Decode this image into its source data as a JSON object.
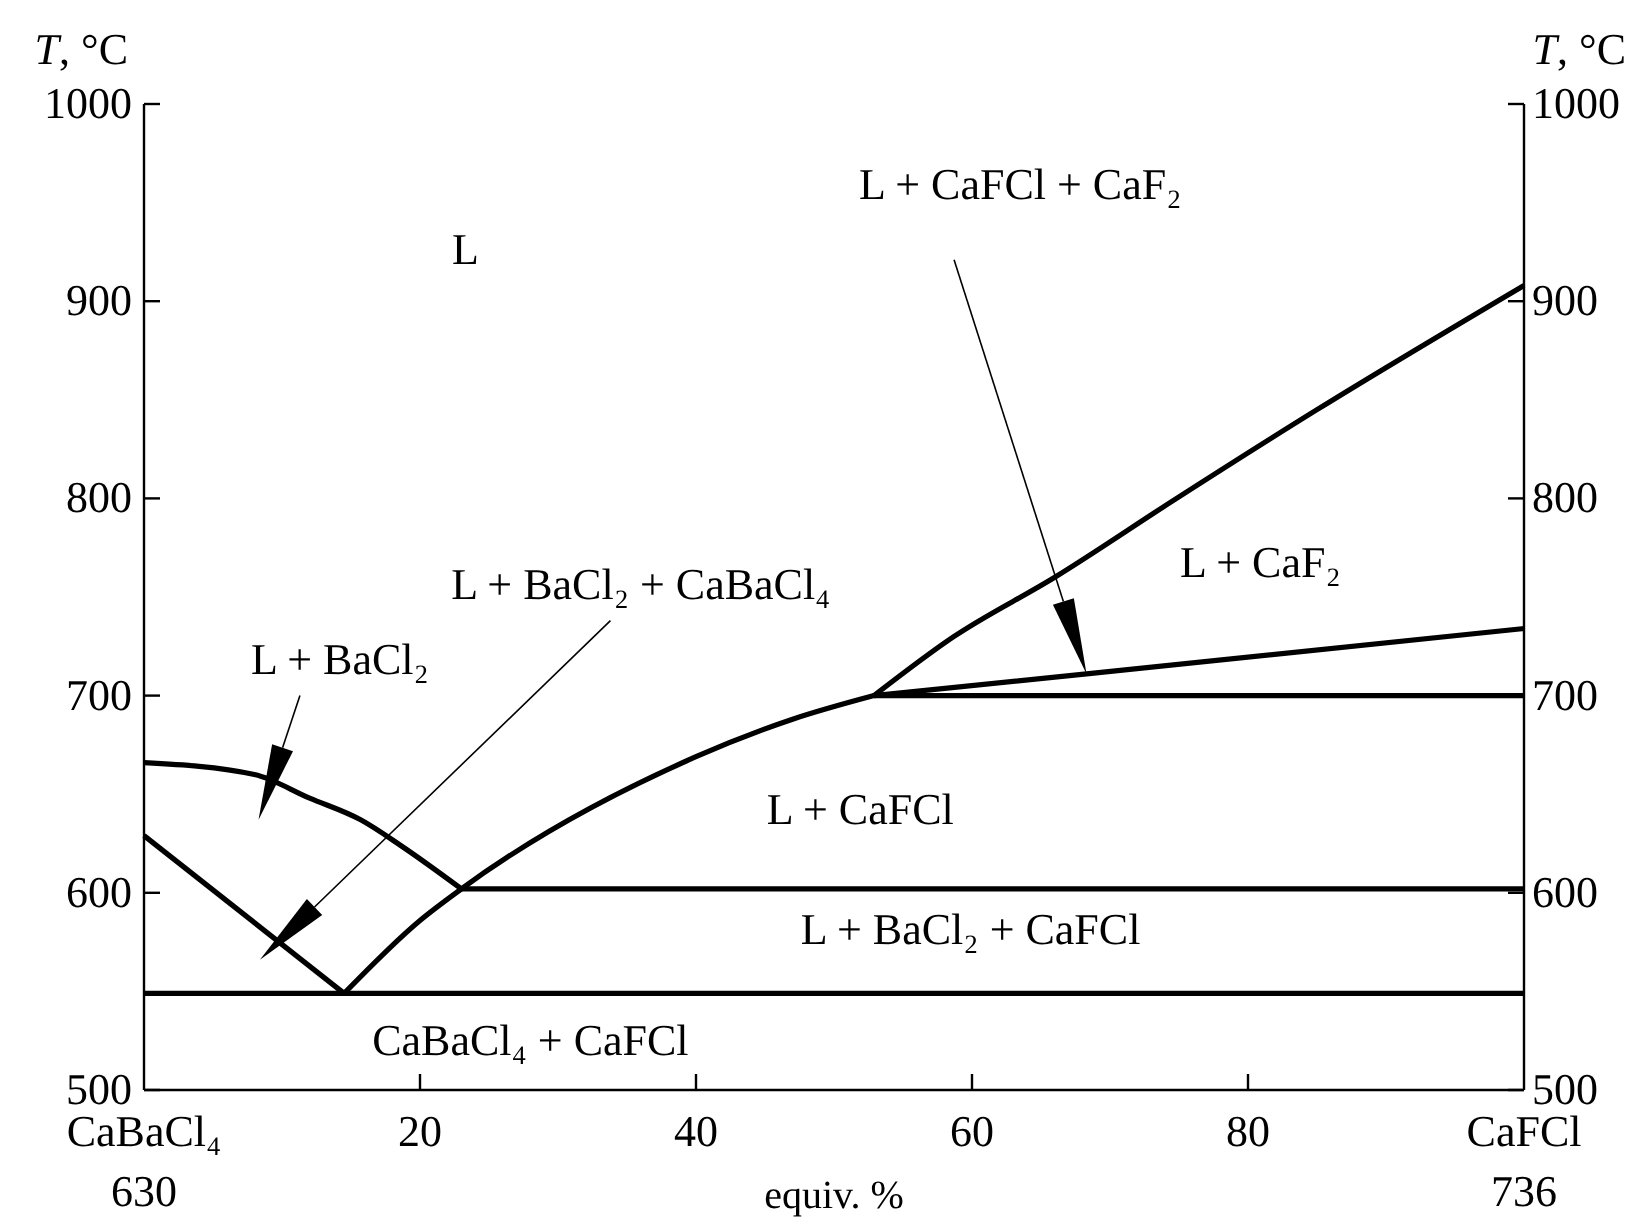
{
  "chart_data": {
    "type": "line",
    "xlabel": "equiv. %",
    "ylabel": "T, °C",
    "y2label": "T, °C",
    "xlim": [
      0,
      100
    ],
    "xticks": [
      {
        "value": 0,
        "label": "CaBaCl₄\n630"
      },
      20,
      40,
      60,
      80,
      {
        "value": 100,
        "label": "CaFCl\n736"
      }
    ],
    "ylim": [
      500,
      1000
    ],
    "yticks": [
      500,
      600,
      700,
      800,
      900,
      1000
    ],
    "y2lim": [
      500,
      1000
    ],
    "y2ticks": [
      500,
      600,
      700,
      800,
      900,
      1000
    ],
    "grid": false,
    "marker": "none",
    "line_style": "solid",
    "series": [
      {
        "x": [
          0,
          8,
          12,
          15.7,
          18.6,
          23
        ],
        "values": [
          666,
          660,
          648,
          637,
          624,
          602
        ],
        "color": "#000000"
      },
      {
        "x": [
          0,
          14.5
        ],
        "values": [
          629,
          549
        ],
        "color": "#000000"
      },
      {
        "x": [
          14.5,
          20,
          23,
          40,
          47,
          52.9
        ],
        "values": [
          549,
          586,
          602,
          669,
          688,
          700
        ],
        "color": "#000000"
      },
      {
        "x": [
          52.9,
          58.7,
          66,
          74.6,
          85,
          100
        ],
        "values": [
          700,
          730,
          760,
          799,
          845,
          908
        ],
        "color": "#000000"
      },
      {
        "x": [
          52.9,
          68.3,
          100
        ],
        "values": [
          700,
          711,
          734
        ],
        "color": "#000000"
      },
      {
        "x": [
          52.9,
          100
        ],
        "values": [
          700,
          700
        ],
        "color": "#000000"
      },
      {
        "x": [
          23,
          100
        ],
        "values": [
          602,
          602
        ],
        "color": "#000000"
      },
      {
        "x": [
          0,
          100
        ],
        "values": [
          549,
          549
        ],
        "color": "#000000"
      }
    ],
    "annotations": [
      "L",
      "L + CaFCl + CaF₂",
      "L + BaCl₂ + CaBaCl₄",
      "L + BaCl₂",
      "L + CaF₂",
      "L + CaFCl",
      "L + BaCl₂ + CaFCl",
      "CaBaCl₄ + CaFCl"
    ]
  }
}
